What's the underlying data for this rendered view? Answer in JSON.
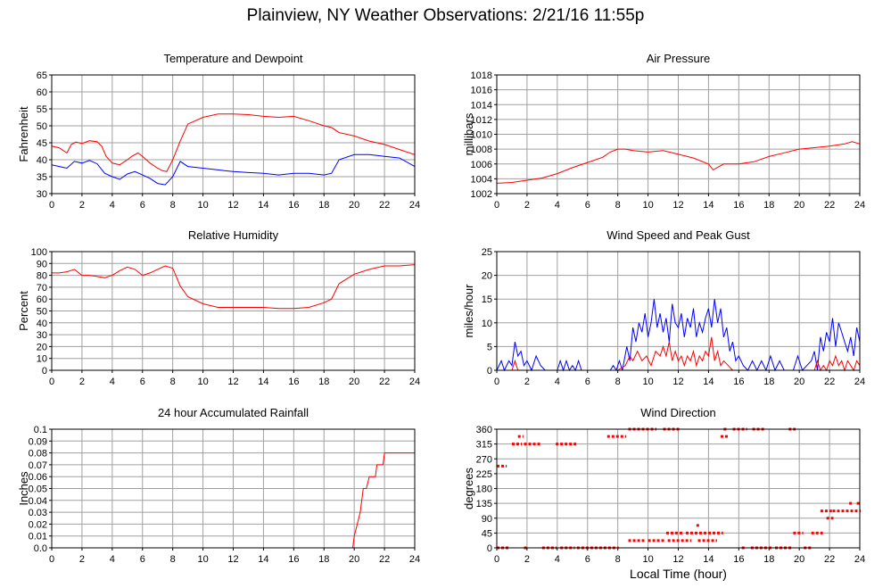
{
  "page": {
    "title": "Plainview, NY Weather Observations: 2/21/16 11:55p",
    "xlabel": "Local Time (hour)"
  },
  "colors": {
    "primary": "#ff0000",
    "secondary": "#0000ff",
    "grid": "#a0a0a0"
  },
  "chart_data": [
    {
      "id": "temp",
      "type": "line",
      "title": "Temperature and Dewpoint",
      "xlabel": "",
      "ylabel": "Fahrenheit",
      "xlim": [
        0,
        24
      ],
      "ylim": [
        30,
        65
      ],
      "yticks": [
        "30",
        "35",
        "40",
        "45",
        "50",
        "55",
        "60",
        "65"
      ],
      "xticks": [
        "0",
        "2",
        "4",
        "6",
        "8",
        "10",
        "12",
        "14",
        "16",
        "18",
        "20",
        "22",
        "24"
      ],
      "grid": true,
      "series": [
        {
          "color": "#ff0000",
          "x": [
            0,
            0.5,
            1,
            1.3,
            1.6,
            2,
            2.5,
            3,
            3.3,
            3.6,
            4,
            4.5,
            5,
            5.3,
            5.7,
            6,
            6.5,
            7,
            7.3,
            7.6,
            8,
            8.5,
            9,
            10,
            11,
            12,
            13,
            14,
            15,
            16,
            17,
            18,
            18.5,
            19,
            20,
            21,
            22,
            23,
            24
          ],
          "y": [
            44,
            43.5,
            42,
            44.5,
            45.2,
            44.8,
            45.6,
            45.3,
            44,
            41,
            39,
            38.5,
            40,
            41,
            42,
            41,
            39,
            37.5,
            36.8,
            36.5,
            40,
            45.5,
            50.5,
            52.5,
            53.5,
            53.5,
            53.3,
            52.8,
            52.5,
            52.8,
            51.5,
            50,
            49.5,
            48,
            47,
            45.5,
            44.5,
            43,
            41.5
          ]
        },
        {
          "color": "#0000ff",
          "x": [
            0,
            0.5,
            1,
            1.5,
            2,
            2.5,
            3,
            3.5,
            4,
            4.5,
            5,
            5.5,
            6,
            6.5,
            7,
            7.5,
            8,
            8.5,
            9,
            10,
            11,
            12,
            13,
            14,
            15,
            16,
            17,
            18,
            18.5,
            19,
            20,
            21,
            22,
            23,
            24
          ],
          "y": [
            38.5,
            38,
            37.5,
            39.5,
            39,
            39.8,
            38.8,
            36,
            35,
            34.2,
            35.8,
            36.5,
            35.5,
            34.5,
            33,
            32.6,
            35,
            39.5,
            38,
            37.5,
            37,
            36.5,
            36.2,
            36,
            35.5,
            36,
            36,
            35.5,
            36,
            40,
            41.5,
            41.5,
            41,
            40.5,
            38
          ]
        }
      ]
    },
    {
      "id": "pressure",
      "type": "line",
      "title": "Air Pressure",
      "xlabel": "",
      "ylabel": "millibars",
      "xlim": [
        0,
        24
      ],
      "ylim": [
        1002,
        1018
      ],
      "yticks": [
        "1002",
        "1004",
        "1006",
        "1008",
        "1010",
        "1012",
        "1014",
        "1016",
        "1018"
      ],
      "xticks": [
        "0",
        "2",
        "4",
        "6",
        "8",
        "10",
        "12",
        "14",
        "16",
        "18",
        "20",
        "22",
        "24"
      ],
      "grid": true,
      "series": [
        {
          "color": "#ff0000",
          "x": [
            0,
            1,
            2,
            3,
            4,
            5,
            6,
            7,
            7.5,
            8,
            8.5,
            9,
            10,
            11,
            12,
            13,
            14,
            14.3,
            15,
            16,
            17,
            18,
            19,
            20,
            21,
            22,
            23,
            23.5,
            24
          ],
          "y": [
            1003.4,
            1003.5,
            1003.8,
            1004.1,
            1004.7,
            1005.5,
            1006.2,
            1006.9,
            1007.6,
            1008,
            1008,
            1007.8,
            1007.6,
            1007.8,
            1007.3,
            1006.8,
            1006,
            1005.2,
            1006,
            1006,
            1006.3,
            1007,
            1007.5,
            1008,
            1008.2,
            1008.4,
            1008.7,
            1009,
            1008.7
          ]
        }
      ]
    },
    {
      "id": "humidity",
      "type": "line",
      "title": "Relative Humidity",
      "xlabel": "",
      "ylabel": "Percent",
      "xlim": [
        0,
        24
      ],
      "ylim": [
        0,
        100
      ],
      "yticks": [
        "0",
        "10",
        "20",
        "30",
        "40",
        "50",
        "60",
        "70",
        "80",
        "90",
        "100"
      ],
      "xticks": [
        "0",
        "2",
        "4",
        "6",
        "8",
        "10",
        "12",
        "14",
        "16",
        "18",
        "20",
        "22",
        "24"
      ],
      "grid": true,
      "series": [
        {
          "color": "#ff0000",
          "x": [
            0,
            0.5,
            1,
            1.5,
            2,
            2.5,
            3,
            3.5,
            4,
            4.5,
            5,
            5.5,
            6,
            6.5,
            7,
            7.5,
            8,
            8.5,
            9,
            10,
            11,
            12,
            13,
            14,
            15,
            16,
            17,
            18,
            18.5,
            19,
            20,
            21,
            22,
            23,
            24
          ],
          "y": [
            82,
            82,
            83,
            85,
            80,
            80,
            79,
            78,
            80,
            84,
            87,
            85,
            80,
            82,
            85,
            88,
            86,
            71,
            62,
            56,
            53,
            53,
            53,
            53,
            52,
            52,
            53,
            57,
            60,
            73,
            81,
            85,
            88,
            88,
            89
          ]
        }
      ]
    },
    {
      "id": "wind",
      "type": "line",
      "title": "Wind Speed and Peak Gust",
      "xlabel": "",
      "ylabel": "miles/hour",
      "xlim": [
        0,
        24
      ],
      "ylim": [
        0,
        25
      ],
      "yticks": [
        "0",
        "5",
        "10",
        "15",
        "20",
        "25"
      ],
      "xticks": [
        "0",
        "2",
        "4",
        "6",
        "8",
        "10",
        "12",
        "14",
        "16",
        "18",
        "20",
        "22",
        "24"
      ],
      "grid": true,
      "series": [
        {
          "color": "#0000ff",
          "x": [
            0,
            0.3,
            0.5,
            0.8,
            1,
            1.2,
            1.4,
            1.6,
            1.8,
            2,
            2.3,
            2.6,
            2.9,
            3.2,
            3.5,
            3.8,
            4,
            4.2,
            4.4,
            4.6,
            4.8,
            5,
            5.2,
            5.4,
            5.6,
            6,
            6.5,
            7,
            7.5,
            7.7,
            7.9,
            8.1,
            8.3,
            8.6,
            8.8,
            9,
            9.2,
            9.4,
            9.6,
            9.8,
            10,
            10.2,
            10.4,
            10.6,
            10.8,
            11,
            11.2,
            11.4,
            11.6,
            11.8,
            12,
            12.2,
            12.4,
            12.6,
            12.8,
            13,
            13.2,
            13.4,
            13.6,
            13.8,
            14,
            14.2,
            14.4,
            14.6,
            14.8,
            15,
            15.2,
            15.4,
            15.6,
            15.8,
            16,
            16.3,
            16.6,
            16.9,
            17.2,
            17.5,
            17.8,
            18.1,
            18.4,
            18.7,
            19,
            19.3,
            19.6,
            19.9,
            20.2,
            20.5,
            20.8,
            21,
            21.2,
            21.4,
            21.6,
            21.8,
            22,
            22.2,
            22.4,
            22.6,
            22.8,
            23,
            23.2,
            23.4,
            23.6,
            23.8,
            24
          ],
          "y": [
            0,
            2,
            0,
            2,
            1,
            6,
            3,
            4,
            1,
            2,
            0,
            3,
            1,
            0,
            0,
            0,
            0,
            2,
            0,
            2,
            0,
            1,
            0,
            2,
            0,
            0,
            0,
            0,
            0,
            1,
            0,
            2,
            0,
            5,
            2,
            9,
            6,
            10,
            8,
            12,
            7,
            10,
            15,
            9,
            12,
            8,
            11,
            6,
            14,
            10,
            9,
            12,
            7,
            11,
            9,
            13,
            7,
            10,
            8,
            11,
            13,
            9,
            15,
            10,
            13,
            7,
            9,
            4,
            6,
            2,
            3,
            1,
            0,
            2,
            0,
            2,
            0,
            3,
            0,
            2,
            0,
            0,
            0,
            3,
            0,
            1,
            2,
            4,
            0,
            7,
            4,
            8,
            6,
            11,
            5,
            10,
            8,
            6,
            4,
            7,
            3,
            9,
            6
          ]
        },
        {
          "color": "#ff0000",
          "x": [
            0,
            1,
            1.2,
            1.4,
            2,
            3,
            4,
            5,
            6,
            7,
            8,
            8.5,
            8.8,
            9,
            9.3,
            9.6,
            9.9,
            10.2,
            10.5,
            10.8,
            11,
            11.2,
            11.4,
            11.6,
            11.8,
            12,
            12.2,
            12.4,
            12.6,
            12.8,
            13,
            13.2,
            13.4,
            13.6,
            13.8,
            14,
            14.2,
            14.4,
            14.6,
            14.8,
            15,
            15.3,
            15.6,
            16,
            17,
            18,
            19,
            20,
            20.5,
            21,
            21.2,
            21.4,
            21.6,
            21.8,
            22,
            22.2,
            22.4,
            22.6,
            22.8,
            23,
            23.2,
            23.4,
            23.6,
            23.8,
            24
          ],
          "y": [
            0,
            0,
            2,
            0,
            0,
            0,
            0,
            0,
            0,
            0,
            0,
            1,
            3,
            2,
            4,
            2,
            3,
            1,
            4,
            3,
            5,
            3,
            6,
            2,
            4,
            2,
            3,
            1,
            3,
            2,
            4,
            1,
            3,
            2,
            4,
            3,
            7,
            2,
            4,
            1,
            2,
            1,
            0,
            0,
            0,
            0,
            0,
            0,
            0,
            0,
            2,
            0,
            1,
            0,
            2,
            1,
            3,
            1,
            2,
            0,
            2,
            1,
            0,
            2,
            1
          ]
        }
      ]
    },
    {
      "id": "rain",
      "type": "line",
      "title": "24 hour Accumulated Rainfall",
      "xlabel": "",
      "ylabel": "Inches",
      "xlim": [
        0,
        24
      ],
      "ylim": [
        0,
        0.1
      ],
      "yticks": [
        "0.0",
        "0.01",
        "0.02",
        "0.03",
        "0.04",
        "0.05",
        "0.06",
        "0.07",
        "0.08",
        "0.09",
        "0.1"
      ],
      "xticks": [
        "0",
        "2",
        "4",
        "6",
        "8",
        "10",
        "12",
        "14",
        "16",
        "18",
        "20",
        "22",
        "24"
      ],
      "grid": true,
      "series": [
        {
          "color": "#ff0000",
          "x": [
            0,
            19.9,
            20,
            20.2,
            20.4,
            20.6,
            20.8,
            21,
            21.4,
            21.5,
            21.9,
            22,
            24
          ],
          "y": [
            0,
            0,
            0.01,
            0.02,
            0.03,
            0.05,
            0.05,
            0.06,
            0.06,
            0.07,
            0.07,
            0.08,
            0.08
          ]
        }
      ]
    },
    {
      "id": "direction",
      "type": "scatter",
      "title": "Wind Direction",
      "xlabel": "",
      "ylabel": "degrees",
      "xlim": [
        0,
        24
      ],
      "ylim": [
        0,
        360
      ],
      "yticks": [
        "0",
        "45",
        "90",
        "135",
        "180",
        "225",
        "270",
        "315",
        "360"
      ],
      "xticks": [
        "0",
        "2",
        "4",
        "6",
        "8",
        "10",
        "12",
        "14",
        "16",
        "18",
        "20",
        "22",
        "24"
      ],
      "grid": true,
      "series": [
        {
          "color": "#ff0000",
          "segments": [
            [
              0.0,
              0.6,
              248
            ],
            [
              0.0,
              0.8,
              0
            ],
            [
              1.0,
              1.6,
              315
            ],
            [
              1.4,
              1.7,
              338
            ],
            [
              1.8,
              2.0,
              0
            ],
            [
              1.8,
              2.9,
              315
            ],
            [
              3.0,
              3.9,
              0
            ],
            [
              3.9,
              5.3,
              315
            ],
            [
              4.2,
              5.1,
              0
            ],
            [
              5.3,
              8.0,
              0
            ],
            [
              7.3,
              8.5,
              338
            ],
            [
              8.7,
              9.7,
              22
            ],
            [
              8.7,
              10.5,
              360
            ],
            [
              10.0,
              11.0,
              22
            ],
            [
              11.0,
              12.0,
              360
            ],
            [
              11.2,
              12.3,
              45
            ],
            [
              11.3,
              12.8,
              22
            ],
            [
              12.5,
              14.9,
              45
            ],
            [
              13.2,
              13.4,
              68
            ],
            [
              13.3,
              14.5,
              22
            ],
            [
              14.8,
              15.3,
              338
            ],
            [
              15.0,
              15.2,
              360
            ],
            [
              15.6,
              16.5,
              360
            ],
            [
              16.2,
              16.4,
              0
            ],
            [
              16.8,
              18.2,
              0
            ],
            [
              16.9,
              17.7,
              360
            ],
            [
              18.4,
              19.5,
              0
            ],
            [
              19.3,
              19.7,
              360
            ],
            [
              19.6,
              20.2,
              45
            ],
            [
              20.3,
              20.8,
              0
            ],
            [
              20.8,
              21.5,
              45
            ],
            [
              21.4,
              22.1,
              112
            ],
            [
              21.8,
              22.2,
              90
            ],
            [
              22.2,
              24.0,
              112
            ],
            [
              23.3,
              23.5,
              135
            ],
            [
              23.8,
              24.0,
              135
            ]
          ]
        }
      ]
    }
  ]
}
